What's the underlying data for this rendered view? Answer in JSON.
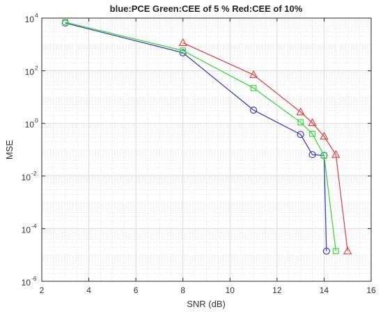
{
  "chart_data": {
    "type": "line",
    "title": "blue:PCE Green:CEE of 5 %  Red:CEE of 10%",
    "xlabel": "SNR (dB)",
    "ylabel": "MSE",
    "xlim": [
      2,
      16
    ],
    "ylim": [
      1e-06,
      10000.0
    ],
    "yscale": "log",
    "xticks": [
      2,
      4,
      6,
      8,
      10,
      12,
      14,
      16
    ],
    "yticks": [
      {
        "base": "10",
        "exp": "4",
        "value": 10000
      },
      {
        "base": "10",
        "exp": "2",
        "value": 100
      },
      {
        "base": "10",
        "exp": "0",
        "value": 1
      },
      {
        "base": "10",
        "exp": "-2",
        "value": 0.01
      },
      {
        "base": "10",
        "exp": "-4",
        "value": 0.0001
      },
      {
        "base": "10",
        "exp": "-6",
        "value": 1e-06
      }
    ],
    "grid": true,
    "minor_grid": true,
    "series": [
      {
        "color": "#3a3fc0",
        "marker": "circle",
        "x": [
          3,
          8,
          11,
          13,
          13.5,
          14,
          14.1
        ],
        "y": [
          6500,
          480,
          3.2,
          0.38,
          0.065,
          0.06,
          1.4e-05
        ]
      },
      {
        "color": "#3fd83f",
        "marker": "square",
        "x": [
          3,
          8,
          11,
          13,
          13.5,
          14,
          14.5
        ],
        "y": [
          7000,
          580,
          22,
          1.1,
          0.4,
          0.06,
          1.4e-05
        ]
      },
      {
        "color": "#e04848",
        "marker": "triangle",
        "x": [
          8,
          11,
          13,
          13.5,
          14,
          14.5,
          15
        ],
        "y": [
          1150,
          70,
          2.7,
          1.05,
          0.32,
          0.065,
          1.4e-05
        ]
      }
    ]
  }
}
